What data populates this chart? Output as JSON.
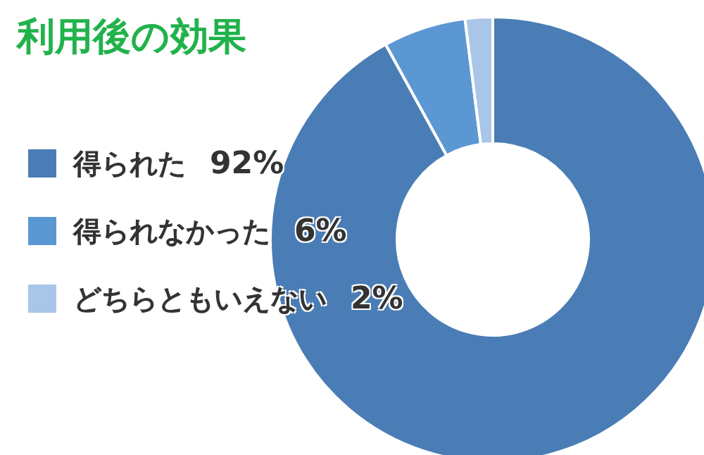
{
  "chart_data": {
    "type": "donut",
    "title": "利用後の効果",
    "categories": [
      "得られた",
      "得られなかった",
      "どちらともいえない"
    ],
    "values": [
      92,
      6,
      2
    ],
    "value_labels": [
      "92%",
      "6%",
      "2%"
    ],
    "colors": [
      "#4a7db5",
      "#5b97d3",
      "#a9c5e8"
    ],
    "legend": "left"
  }
}
